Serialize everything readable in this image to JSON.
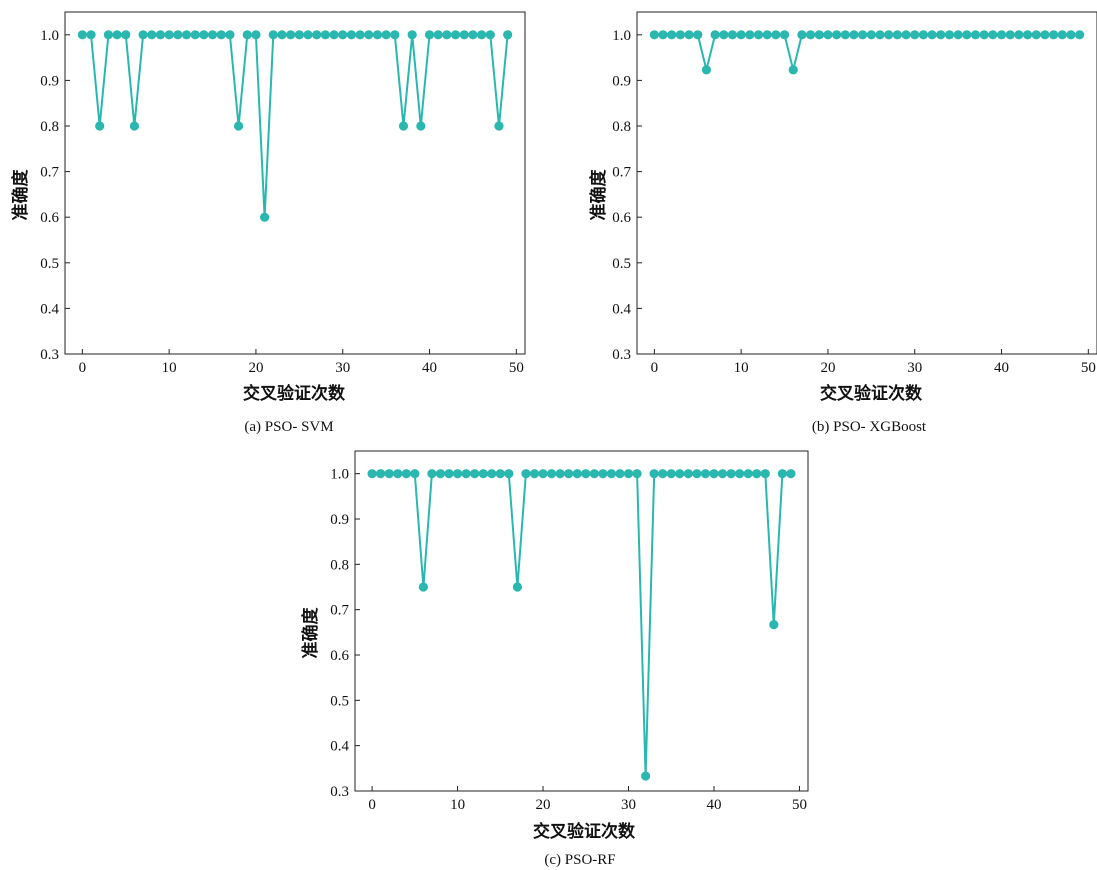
{
  "chart_data": [
    {
      "type": "line",
      "caption": "(a) PSO- SVM",
      "xlabel": "交叉验证次数",
      "ylabel": "准确度",
      "xlim": [
        -2,
        51
      ],
      "ylim": [
        0.3,
        1.05
      ],
      "xticks": [
        0,
        10,
        20,
        30,
        40,
        50
      ],
      "xtick_labels": [
        "0",
        "10",
        "20",
        "30",
        "40",
        "50"
      ],
      "yticks": [
        0.3,
        0.4,
        0.5,
        0.6,
        0.7,
        0.8,
        0.9,
        1.0
      ],
      "ytick_labels": [
        "0.3",
        "0.4",
        "0.5",
        "0.6",
        "0.7",
        "0.8",
        "0.9",
        "1.0"
      ],
      "grid": false,
      "series": [
        {
          "color": "#2ab7b0",
          "x": [
            0,
            1,
            2,
            3,
            4,
            5,
            6,
            7,
            8,
            9,
            10,
            11,
            12,
            13,
            14,
            15,
            16,
            17,
            18,
            19,
            20,
            21,
            22,
            23,
            24,
            25,
            26,
            27,
            28,
            29,
            30,
            31,
            32,
            33,
            34,
            35,
            36,
            37,
            38,
            39,
            40,
            41,
            42,
            43,
            44,
            45,
            46,
            47,
            48,
            49
          ],
          "y": [
            1.0,
            1.0,
            0.8,
            1.0,
            1.0,
            1.0,
            0.8,
            1.0,
            1.0,
            1.0,
            1.0,
            1.0,
            1.0,
            1.0,
            1.0,
            1.0,
            1.0,
            1.0,
            0.8,
            1.0,
            1.0,
            0.6,
            1.0,
            1.0,
            1.0,
            1.0,
            1.0,
            1.0,
            1.0,
            1.0,
            1.0,
            1.0,
            1.0,
            1.0,
            1.0,
            1.0,
            1.0,
            0.8,
            1.0,
            0.8,
            1.0,
            1.0,
            1.0,
            1.0,
            1.0,
            1.0,
            1.0,
            1.0,
            0.8,
            1.0
          ]
        }
      ]
    },
    {
      "type": "line",
      "caption": "(b) PSO- XGBoost",
      "xlabel": "交叉验证次数",
      "ylabel": "准确度",
      "xlim": [
        -2,
        51
      ],
      "ylim": [
        0.3,
        1.05
      ],
      "xticks": [
        0,
        10,
        20,
        30,
        40,
        50
      ],
      "xtick_labels": [
        "0",
        "10",
        "20",
        "30",
        "40",
        "50"
      ],
      "yticks": [
        0.3,
        0.4,
        0.5,
        0.6,
        0.7,
        0.8,
        0.9,
        1.0
      ],
      "ytick_labels": [
        "0.3",
        "0.4",
        "0.5",
        "0.6",
        "0.7",
        "0.8",
        "0.9",
        "1.0"
      ],
      "grid": false,
      "series": [
        {
          "color": "#2ab7b0",
          "x": [
            0,
            1,
            2,
            3,
            4,
            5,
            6,
            7,
            8,
            9,
            10,
            11,
            12,
            13,
            14,
            15,
            16,
            17,
            18,
            19,
            20,
            21,
            22,
            23,
            24,
            25,
            26,
            27,
            28,
            29,
            30,
            31,
            32,
            33,
            34,
            35,
            36,
            37,
            38,
            39,
            40,
            41,
            42,
            43,
            44,
            45,
            46,
            47,
            48,
            49
          ],
          "y": [
            1.0,
            1.0,
            1.0,
            1.0,
            1.0,
            1.0,
            0.923,
            1.0,
            1.0,
            1.0,
            1.0,
            1.0,
            1.0,
            1.0,
            1.0,
            1.0,
            0.923,
            1.0,
            1.0,
            1.0,
            1.0,
            1.0,
            1.0,
            1.0,
            1.0,
            1.0,
            1.0,
            1.0,
            1.0,
            1.0,
            1.0,
            1.0,
            1.0,
            1.0,
            1.0,
            1.0,
            1.0,
            1.0,
            1.0,
            1.0,
            1.0,
            1.0,
            1.0,
            1.0,
            1.0,
            1.0,
            1.0,
            1.0,
            1.0,
            1.0
          ]
        }
      ]
    },
    {
      "type": "line",
      "caption": "(c) PSO-RF",
      "xlabel": "交叉验证次数",
      "ylabel": "准确度",
      "xlim": [
        -2,
        51
      ],
      "ylim": [
        0.3,
        1.05
      ],
      "xticks": [
        0,
        10,
        20,
        30,
        40,
        50
      ],
      "xtick_labels": [
        "0",
        "10",
        "20",
        "30",
        "40",
        "50"
      ],
      "yticks": [
        0.3,
        0.4,
        0.5,
        0.6,
        0.7,
        0.8,
        0.9,
        1.0
      ],
      "ytick_labels": [
        "0.3",
        "0.4",
        "0.5",
        "0.6",
        "0.7",
        "0.8",
        "0.9",
        "1.0"
      ],
      "grid": false,
      "series": [
        {
          "color": "#2ab7b0",
          "x": [
            0,
            1,
            2,
            3,
            4,
            5,
            6,
            7,
            8,
            9,
            10,
            11,
            12,
            13,
            14,
            15,
            16,
            17,
            18,
            19,
            20,
            21,
            22,
            23,
            24,
            25,
            26,
            27,
            28,
            29,
            30,
            31,
            32,
            33,
            34,
            35,
            36,
            37,
            38,
            39,
            40,
            41,
            42,
            43,
            44,
            45,
            46,
            47,
            48,
            49
          ],
          "y": [
            1.0,
            1.0,
            1.0,
            1.0,
            1.0,
            1.0,
            0.75,
            1.0,
            1.0,
            1.0,
            1.0,
            1.0,
            1.0,
            1.0,
            1.0,
            1.0,
            1.0,
            0.75,
            1.0,
            1.0,
            1.0,
            1.0,
            1.0,
            1.0,
            1.0,
            1.0,
            1.0,
            1.0,
            1.0,
            1.0,
            1.0,
            1.0,
            0.333,
            1.0,
            1.0,
            1.0,
            1.0,
            1.0,
            1.0,
            1.0,
            1.0,
            1.0,
            1.0,
            1.0,
            1.0,
            1.0,
            1.0,
            0.667,
            1.0,
            1.0
          ]
        }
      ]
    }
  ]
}
